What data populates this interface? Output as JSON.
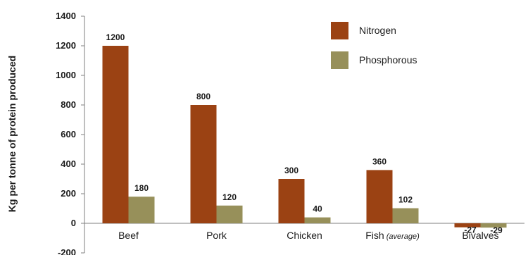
{
  "chart_data": {
    "type": "bar",
    "categories": [
      "Beef",
      "Pork",
      "Chicken",
      "Fish",
      "Bivalves"
    ],
    "category_notes": [
      "",
      "",
      "",
      "(average)",
      ""
    ],
    "series": [
      {
        "name": "Nitrogen",
        "color": "#9b4213",
        "values": [
          1200,
          800,
          300,
          360,
          -27
        ]
      },
      {
        "name": "Phosphorous",
        "color": "#97905a",
        "values": [
          180,
          120,
          40,
          102,
          -29
        ]
      }
    ],
    "value_labels": [
      [
        "1200",
        "800",
        "300",
        "360",
        "-27"
      ],
      [
        "180",
        "120",
        "40",
        "102",
        "-29"
      ]
    ],
    "ylabel": "Kg per tonne of protein produced",
    "ylim": [
      -200,
      1400
    ],
    "yticks": [
      -200,
      0,
      200,
      400,
      600,
      800,
      1000,
      1200,
      1400
    ],
    "grid": false,
    "legend_position": "top-right"
  }
}
